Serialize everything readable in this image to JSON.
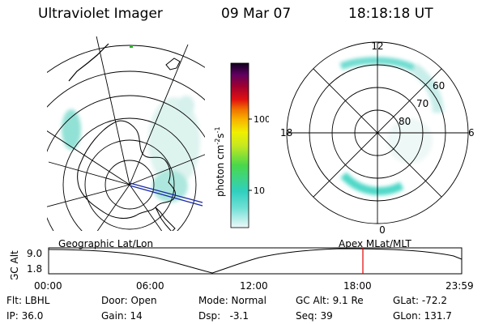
{
  "header": {
    "title": "Ultraviolet Imager",
    "date": "09 Mar 07",
    "time": "18:18:18 UT"
  },
  "colorbar": {
    "unit_label": "photon cm",
    "unit_sup1": "-2",
    "unit_mid": "s",
    "unit_sup2": "-1",
    "ticks": [
      {
        "label": "100",
        "value": 100
      },
      {
        "label": "10",
        "value": 10
      }
    ],
    "colors": [
      "#e6f4f7",
      "#3fd0c0",
      "#4ad84a",
      "#b8e020",
      "#f0f000",
      "#f8b000",
      "#f07000",
      "#e01010",
      "#c00030",
      "#900040",
      "#600060",
      "#200040"
    ]
  },
  "polar_plot": {
    "mlt_labels": {
      "top": "12",
      "bottom": "0",
      "left": "18",
      "right": "6"
    },
    "lat_labels": [
      "60",
      "70",
      "80"
    ]
  },
  "timeline": {
    "left_title": "Geographic Lat/Lon",
    "right_title": "Apex MLat/MLT",
    "axis_label": "GC Alt",
    "y_ticks": [
      "9.0",
      "1.8"
    ],
    "x_ticks": [
      "00:00",
      "06:00",
      "12:00",
      "18:00",
      "23:59"
    ],
    "marker_time": "18:18"
  },
  "info": {
    "flt": "Flt: LBHL",
    "ip": "IP: 36.0",
    "door": "Door: Open",
    "gain": "Gain: 14",
    "mode": "Mode: Normal",
    "dsp": "Dsp:   -3.1",
    "gcalt": "GC Alt: 9.1 Re",
    "seq": "Seq: 39",
    "glat": "GLat: -72.2",
    "glon": "GLon: 131.7"
  },
  "colors": {
    "aurora_light": "#cfeee9",
    "aurora_mid": "#5fd8c8",
    "marker": "#e00000",
    "coast": "#000000",
    "track": "#1a2aa0"
  }
}
